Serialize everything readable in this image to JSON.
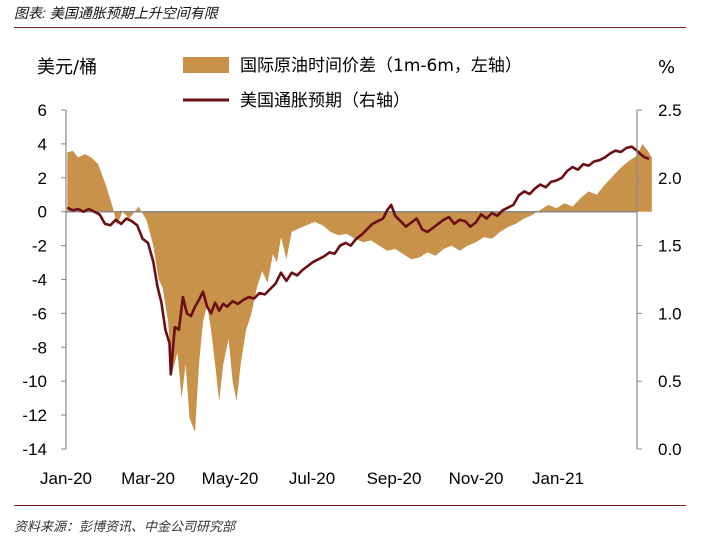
{
  "header": {
    "title": "图表: 美国通胀预期上升空间有限"
  },
  "footer": {
    "source": "资料来源：彭博资讯、中金公司研究部"
  },
  "chart_data": {
    "type": "area+line",
    "left_unit": "美元/桶",
    "right_unit": "%",
    "x_ticks": [
      "Jan-20",
      "Mar-20",
      "May-20",
      "Jul-20",
      "Sep-20",
      "Nov-20",
      "Jan-21"
    ],
    "y_left": {
      "range": [
        -14,
        6
      ],
      "ticks": [
        "6",
        "4",
        "2",
        "0",
        "-2",
        "-4",
        "-6",
        "-8",
        "-10",
        "-12",
        "-14"
      ]
    },
    "y_right": {
      "range": [
        0.0,
        2.5
      ],
      "ticks": [
        "2.5",
        "2.0",
        "1.5",
        "1.0",
        "0.5",
        "0.0"
      ]
    },
    "colors": {
      "area": "#c8924a",
      "line": "#6b0f14",
      "axis": "#8a8a8a",
      "rule": "#7a1a1a"
    },
    "series": [
      {
        "name": "国际原油时间价差（1m-6m，左轴）",
        "type": "area",
        "axis": "left",
        "points": [
          [
            "2020-01-02",
            3.5
          ],
          [
            "2020-01-06",
            3.6
          ],
          [
            "2020-01-10",
            3.2
          ],
          [
            "2020-01-15",
            3.4
          ],
          [
            "2020-01-20",
            3.2
          ],
          [
            "2020-01-25",
            2.8
          ],
          [
            "2020-01-31",
            1.5
          ],
          [
            "2020-02-05",
            0.2
          ],
          [
            "2020-02-08",
            -0.8
          ],
          [
            "2020-02-12",
            0.0
          ],
          [
            "2020-02-17",
            -0.4
          ],
          [
            "2020-02-24",
            0.3
          ],
          [
            "2020-03-01",
            -0.5
          ],
          [
            "2020-03-06",
            -2.0
          ],
          [
            "2020-03-10",
            -4.0
          ],
          [
            "2020-03-13",
            -4.5
          ],
          [
            "2020-03-17",
            -6.5
          ],
          [
            "2020-03-20",
            -9.5
          ],
          [
            "2020-03-24",
            -8.3
          ],
          [
            "2020-03-27",
            -11.0
          ],
          [
            "2020-03-30",
            -9.0
          ],
          [
            "2020-04-02",
            -12.2
          ],
          [
            "2020-04-06",
            -13.0
          ],
          [
            "2020-04-09",
            -9.0
          ],
          [
            "2020-04-12",
            -6.5
          ],
          [
            "2020-04-15",
            -5.5
          ],
          [
            "2020-04-18",
            -7.0
          ],
          [
            "2020-04-21",
            -9.0
          ],
          [
            "2020-04-24",
            -11.2
          ],
          [
            "2020-04-27",
            -9.0
          ],
          [
            "2020-05-01",
            -7.5
          ],
          [
            "2020-05-04",
            -10.0
          ],
          [
            "2020-05-07",
            -11.2
          ],
          [
            "2020-05-10",
            -9.0
          ],
          [
            "2020-05-14",
            -7.0
          ],
          [
            "2020-05-18",
            -6.0
          ],
          [
            "2020-05-22",
            -4.5
          ],
          [
            "2020-05-26",
            -3.5
          ],
          [
            "2020-05-30",
            -4.2
          ],
          [
            "2020-06-03",
            -2.5
          ],
          [
            "2020-06-06",
            -3.0
          ],
          [
            "2020-06-09",
            -1.5
          ],
          [
            "2020-06-13",
            -2.8
          ],
          [
            "2020-06-17",
            -1.2
          ],
          [
            "2020-06-22",
            -1.0
          ],
          [
            "2020-06-28",
            -0.8
          ],
          [
            "2020-07-04",
            -0.6
          ],
          [
            "2020-07-10",
            -0.8
          ],
          [
            "2020-07-16",
            -1.2
          ],
          [
            "2020-07-22",
            -1.4
          ],
          [
            "2020-07-28",
            -1.3
          ],
          [
            "2020-08-03",
            -1.6
          ],
          [
            "2020-08-09",
            -1.8
          ],
          [
            "2020-08-15",
            -1.7
          ],
          [
            "2020-08-21",
            -2.0
          ],
          [
            "2020-08-27",
            -2.3
          ],
          [
            "2020-09-02",
            -2.2
          ],
          [
            "2020-09-08",
            -2.5
          ],
          [
            "2020-09-14",
            -2.8
          ],
          [
            "2020-09-20",
            -2.7
          ],
          [
            "2020-09-26",
            -2.4
          ],
          [
            "2020-10-02",
            -2.6
          ],
          [
            "2020-10-08",
            -2.2
          ],
          [
            "2020-10-14",
            -2.0
          ],
          [
            "2020-10-20",
            -2.3
          ],
          [
            "2020-10-26",
            -2.0
          ],
          [
            "2020-11-01",
            -1.8
          ],
          [
            "2020-11-07",
            -1.5
          ],
          [
            "2020-11-13",
            -1.6
          ],
          [
            "2020-11-19",
            -1.2
          ],
          [
            "2020-11-25",
            -0.9
          ],
          [
            "2020-12-01",
            -0.7
          ],
          [
            "2020-12-07",
            -0.4
          ],
          [
            "2020-12-13",
            -0.2
          ],
          [
            "2020-12-19",
            0.1
          ],
          [
            "2020-12-25",
            0.4
          ],
          [
            "2020-12-31",
            0.2
          ],
          [
            "2021-01-06",
            0.5
          ],
          [
            "2021-01-12",
            0.3
          ],
          [
            "2021-01-18",
            0.8
          ],
          [
            "2021-01-24",
            1.2
          ],
          [
            "2021-01-30",
            1.0
          ],
          [
            "2021-02-05",
            1.6
          ],
          [
            "2021-02-11",
            2.1
          ],
          [
            "2021-02-17",
            2.6
          ],
          [
            "2021-02-23",
            3.0
          ],
          [
            "2021-03-01",
            3.3
          ],
          [
            "2021-03-05",
            4.0
          ],
          [
            "2021-03-09",
            3.6
          ],
          [
            "2021-03-12",
            3.2
          ]
        ]
      },
      {
        "name": "美国通胀预期（右轴）",
        "type": "line",
        "axis": "right",
        "points": [
          [
            "2020-01-02",
            1.78
          ],
          [
            "2020-01-06",
            1.76
          ],
          [
            "2020-01-10",
            1.77
          ],
          [
            "2020-01-14",
            1.75
          ],
          [
            "2020-01-18",
            1.77
          ],
          [
            "2020-01-22",
            1.75
          ],
          [
            "2020-01-26",
            1.73
          ],
          [
            "2020-01-30",
            1.66
          ],
          [
            "2020-02-03",
            1.65
          ],
          [
            "2020-02-07",
            1.69
          ],
          [
            "2020-02-11",
            1.66
          ],
          [
            "2020-02-15",
            1.7
          ],
          [
            "2020-02-19",
            1.68
          ],
          [
            "2020-02-23",
            1.65
          ],
          [
            "2020-02-27",
            1.55
          ],
          [
            "2020-03-02",
            1.52
          ],
          [
            "2020-03-06",
            1.38
          ],
          [
            "2020-03-09",
            1.2
          ],
          [
            "2020-03-12",
            1.08
          ],
          [
            "2020-03-15",
            0.88
          ],
          [
            "2020-03-18",
            0.78
          ],
          [
            "2020-03-19",
            0.55
          ],
          [
            "2020-03-22",
            0.9
          ],
          [
            "2020-03-25",
            0.88
          ],
          [
            "2020-03-28",
            1.12
          ],
          [
            "2020-03-31",
            1.0
          ],
          [
            "2020-04-03",
            0.98
          ],
          [
            "2020-04-06",
            1.05
          ],
          [
            "2020-04-09",
            1.1
          ],
          [
            "2020-04-12",
            1.16
          ],
          [
            "2020-04-15",
            1.05
          ],
          [
            "2020-04-18",
            1.0
          ],
          [
            "2020-04-21",
            1.08
          ],
          [
            "2020-04-24",
            1.02
          ],
          [
            "2020-04-27",
            1.07
          ],
          [
            "2020-04-30",
            1.05
          ],
          [
            "2020-05-04",
            1.09
          ],
          [
            "2020-05-08",
            1.07
          ],
          [
            "2020-05-12",
            1.1
          ],
          [
            "2020-05-16",
            1.12
          ],
          [
            "2020-05-20",
            1.11
          ],
          [
            "2020-05-24",
            1.15
          ],
          [
            "2020-05-28",
            1.14
          ],
          [
            "2020-06-01",
            1.18
          ],
          [
            "2020-06-05",
            1.22
          ],
          [
            "2020-06-09",
            1.3
          ],
          [
            "2020-06-13",
            1.24
          ],
          [
            "2020-06-17",
            1.3
          ],
          [
            "2020-06-21",
            1.28
          ],
          [
            "2020-06-25",
            1.32
          ],
          [
            "2020-06-29",
            1.35
          ],
          [
            "2020-07-03",
            1.38
          ],
          [
            "2020-07-07",
            1.4
          ],
          [
            "2020-07-11",
            1.42
          ],
          [
            "2020-07-15",
            1.45
          ],
          [
            "2020-07-19",
            1.44
          ],
          [
            "2020-07-23",
            1.5
          ],
          [
            "2020-07-27",
            1.52
          ],
          [
            "2020-07-31",
            1.5
          ],
          [
            "2020-08-04",
            1.55
          ],
          [
            "2020-08-08",
            1.58
          ],
          [
            "2020-08-12",
            1.62
          ],
          [
            "2020-08-16",
            1.66
          ],
          [
            "2020-08-20",
            1.68
          ],
          [
            "2020-08-24",
            1.7
          ],
          [
            "2020-08-27",
            1.76
          ],
          [
            "2020-08-30",
            1.8
          ],
          [
            "2020-09-02",
            1.72
          ],
          [
            "2020-09-06",
            1.68
          ],
          [
            "2020-09-10",
            1.64
          ],
          [
            "2020-09-14",
            1.67
          ],
          [
            "2020-09-18",
            1.7
          ],
          [
            "2020-09-22",
            1.62
          ],
          [
            "2020-09-26",
            1.6
          ],
          [
            "2020-09-30",
            1.63
          ],
          [
            "2020-10-04",
            1.66
          ],
          [
            "2020-10-08",
            1.69
          ],
          [
            "2020-10-12",
            1.71
          ],
          [
            "2020-10-16",
            1.66
          ],
          [
            "2020-10-20",
            1.69
          ],
          [
            "2020-10-24",
            1.68
          ],
          [
            "2020-10-28",
            1.64
          ],
          [
            "2020-11-01",
            1.67
          ],
          [
            "2020-11-05",
            1.73
          ],
          [
            "2020-11-09",
            1.7
          ],
          [
            "2020-11-13",
            1.74
          ],
          [
            "2020-11-17",
            1.72
          ],
          [
            "2020-11-21",
            1.76
          ],
          [
            "2020-11-25",
            1.78
          ],
          [
            "2020-11-29",
            1.8
          ],
          [
            "2020-12-03",
            1.87
          ],
          [
            "2020-12-07",
            1.9
          ],
          [
            "2020-12-11",
            1.88
          ],
          [
            "2020-12-15",
            1.92
          ],
          [
            "2020-12-19",
            1.95
          ],
          [
            "2020-12-23",
            1.93
          ],
          [
            "2020-12-27",
            1.97
          ],
          [
            "2020-12-31",
            1.98
          ],
          [
            "2021-01-04",
            2.0
          ],
          [
            "2021-01-08",
            2.05
          ],
          [
            "2021-01-12",
            2.08
          ],
          [
            "2021-01-16",
            2.06
          ],
          [
            "2021-01-20",
            2.1
          ],
          [
            "2021-01-24",
            2.09
          ],
          [
            "2021-01-28",
            2.12
          ],
          [
            "2021-02-01",
            2.13
          ],
          [
            "2021-02-05",
            2.15
          ],
          [
            "2021-02-09",
            2.18
          ],
          [
            "2021-02-13",
            2.2
          ],
          [
            "2021-02-17",
            2.19
          ],
          [
            "2021-02-21",
            2.22
          ],
          [
            "2021-02-25",
            2.23
          ],
          [
            "2021-03-01",
            2.2
          ],
          [
            "2021-03-04",
            2.17
          ],
          [
            "2021-03-07",
            2.15
          ],
          [
            "2021-03-10",
            2.14
          ]
        ]
      }
    ]
  }
}
